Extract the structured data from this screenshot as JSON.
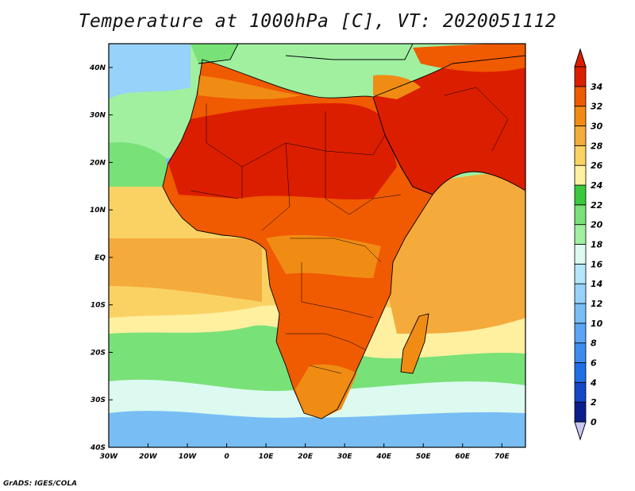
{
  "title": "Temperature at 1000hPa [C], VT: 2020051112",
  "credit": "GrADS: IGES/COLA",
  "map": {
    "lon_range": [
      -30,
      76
    ],
    "lat_range": [
      -40,
      45
    ],
    "lon_ticks": [
      {
        "lon": -30,
        "label": "30W"
      },
      {
        "lon": -20,
        "label": "20W"
      },
      {
        "lon": -10,
        "label": "10W"
      },
      {
        "lon": 0,
        "label": "0"
      },
      {
        "lon": 10,
        "label": "10E"
      },
      {
        "lon": 20,
        "label": "20E"
      },
      {
        "lon": 30,
        "label": "30E"
      },
      {
        "lon": 40,
        "label": "40E"
      },
      {
        "lon": 50,
        "label": "50E"
      },
      {
        "lon": 60,
        "label": "60E"
      },
      {
        "lon": 70,
        "label": "70E"
      }
    ],
    "lat_ticks": [
      {
        "lat": 40,
        "label": "40N"
      },
      {
        "lat": 30,
        "label": "30N"
      },
      {
        "lat": 20,
        "label": "20N"
      },
      {
        "lat": 10,
        "label": "10N"
      },
      {
        "lat": 0,
        "label": "EQ"
      },
      {
        "lat": -10,
        "label": "10S"
      },
      {
        "lat": -20,
        "label": "20S"
      },
      {
        "lat": -30,
        "label": "30S"
      },
      {
        "lat": -40,
        "label": "40S"
      }
    ]
  },
  "colorbar": {
    "levels": [
      "0",
      "2",
      "4",
      "6",
      "8",
      "10",
      "12",
      "14",
      "16",
      "18",
      "20",
      "22",
      "24",
      "26",
      "28",
      "30",
      "32",
      "34"
    ],
    "colors": [
      "#0a1e8c",
      "#1446c8",
      "#1e6ee6",
      "#3c8cf0",
      "#5aa5f5",
      "#78bef5",
      "#96d2fa",
      "#b4e6fa",
      "#dcfaf0",
      "#a0f0a0",
      "#78e178",
      "#3cc83c",
      "#fff0a0",
      "#fad264",
      "#f5aa3c",
      "#f08c14",
      "#f05a00",
      "#dc1e00"
    ],
    "over_color": "#dc1e00",
    "under_color": "#c8c8f5"
  },
  "fields": {
    "ocean_south_cold": "#78bef5",
    "ocean_south_cool": "#dcfaf0",
    "ocean_south_mild": "#78e178",
    "ocean_south_warm": "#fff0a0",
    "ocean_tropical": "#fad264",
    "ocean_equatorial": "#f5aa3c",
    "indian_ocean": "#f5aa3c",
    "mediterranean": "#a0f0a0",
    "sahara": "#dc1e00",
    "sahel": "#f05a00",
    "central_africa": "#f08c14",
    "southern_africa": "#f05a00",
    "south_tip": "#f08c14"
  }
}
